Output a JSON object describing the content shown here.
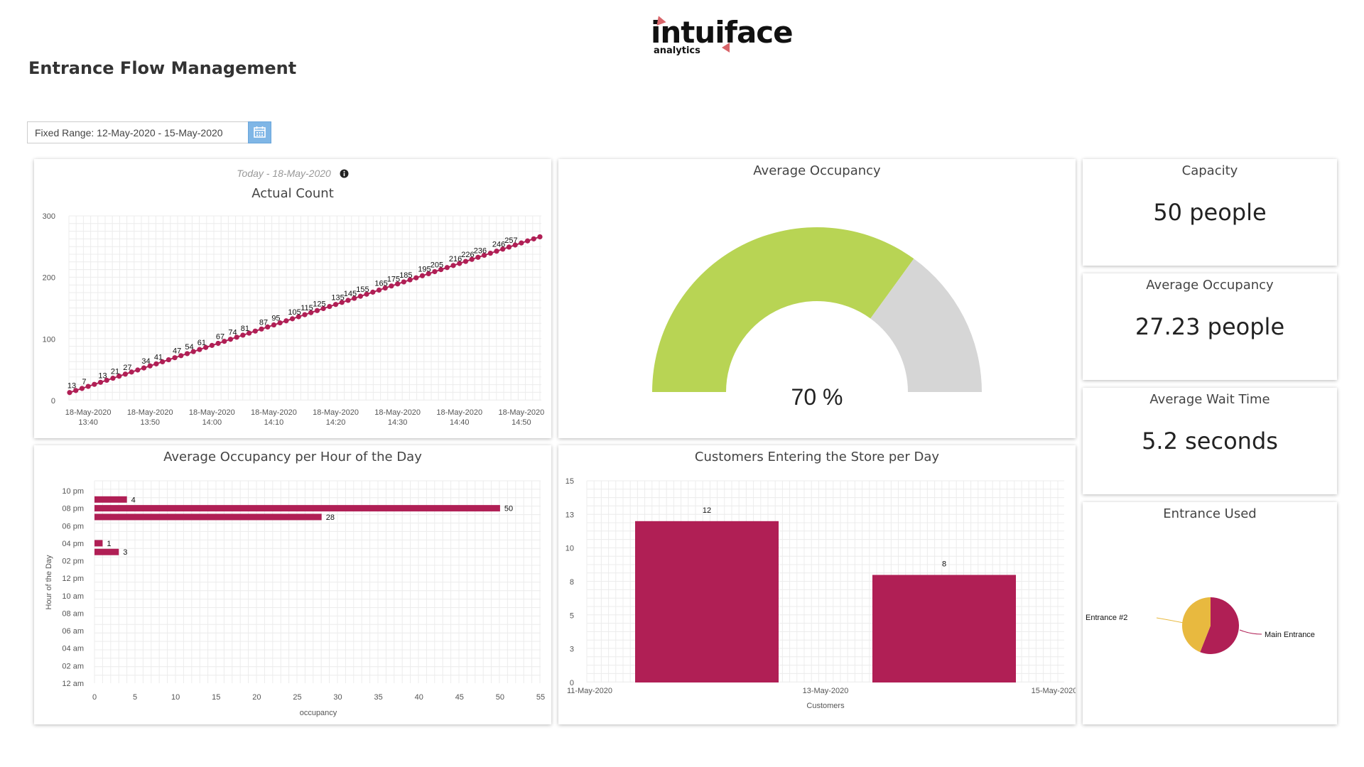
{
  "brand": {
    "logo_text": "intuiface",
    "logo_sub": "analytics",
    "accent": "#d8656a"
  },
  "page_title": "Entrance Flow Management",
  "date_range": {
    "label": "Fixed Range: 12-May-2020 - 15-May-2020",
    "button_icon": "calendar-icon",
    "accent": "#7fb6e6"
  },
  "colors": {
    "series": "#b01f55",
    "gauge_fill": "#b8d454",
    "gauge_bg": "#d6d6d6",
    "pie_main": "#b01f55",
    "pie_other": "#e8b93f"
  },
  "actual_count": {
    "subtitle": "Today - 18-May-2020",
    "title": "Actual Count",
    "info_icon": "info-icon",
    "chart_data": {
      "type": "line",
      "title": "Actual Count",
      "x_tick_labels": [
        [
          "18-May-2020",
          "13:40"
        ],
        [
          "18-May-2020",
          "13:50"
        ],
        [
          "18-May-2020",
          "14:00"
        ],
        [
          "18-May-2020",
          "14:10"
        ],
        [
          "18-May-2020",
          "14:20"
        ],
        [
          "18-May-2020",
          "14:30"
        ],
        [
          "18-May-2020",
          "14:40"
        ],
        [
          "18-May-2020",
          "14:50"
        ]
      ],
      "x_start": "13:37",
      "x_end": "14:53",
      "ylim": [
        0,
        300
      ],
      "yticks": [
        0,
        100,
        200,
        300
      ],
      "labeled_values": [
        13,
        7,
        13,
        21,
        27,
        34,
        41,
        47,
        54,
        61,
        67,
        74,
        81,
        87,
        95,
        105,
        115,
        125,
        135,
        145,
        155,
        165,
        175,
        185,
        195,
        205,
        216,
        226,
        236,
        246,
        257
      ],
      "point_count": 77,
      "end_value": 266,
      "grid": true
    }
  },
  "average_occupancy_gauge": {
    "title": "Average Occupancy",
    "chart_data": {
      "type": "gauge",
      "value": 70,
      "max": 100,
      "label": "70 %"
    }
  },
  "kpis": [
    {
      "title": "Capacity",
      "value": "50 people"
    },
    {
      "title": "Average Occupancy",
      "value": "27.23 people"
    },
    {
      "title": "Average Wait Time",
      "value": "5.2 seconds"
    }
  ],
  "hourly_occupancy": {
    "title": "Average Occupancy per Hour of the Day",
    "chart_data": {
      "type": "bar",
      "orientation": "horizontal",
      "title": "Average Occupancy per Hour of the Day",
      "xlabel": "occupancy",
      "ylabel": "Hour of the Day",
      "xlim": [
        0,
        55
      ],
      "xticks": [
        0,
        5,
        10,
        15,
        20,
        25,
        30,
        35,
        40,
        45,
        50,
        55
      ],
      "yticks": [
        "12 am",
        "02 am",
        "04 am",
        "06 am",
        "08 am",
        "10 am",
        "12 pm",
        "02 pm",
        "04 pm",
        "06 pm",
        "08 pm",
        "10 pm"
      ],
      "bars": [
        {
          "hour": 21,
          "value": 4
        },
        {
          "hour": 20,
          "value": 50
        },
        {
          "hour": 19,
          "value": 28
        },
        {
          "hour": 16,
          "value": 1
        },
        {
          "hour": 15,
          "value": 3
        }
      ]
    }
  },
  "customers_per_day": {
    "title": "Customers Entering the Store per Day",
    "chart_data": {
      "type": "bar",
      "title": "Customers Entering the Store per Day",
      "xlabel": "Customers",
      "x_tick_labels": [
        "11-May-2020",
        "13-May-2020",
        "15-May-2020"
      ],
      "ylim": [
        0,
        15
      ],
      "ytick_labels": [
        "0",
        "3",
        "5",
        "8",
        "10",
        "13",
        "15"
      ],
      "categories": [
        "12-May-2020",
        "14-May-2020"
      ],
      "values": [
        12,
        8
      ]
    }
  },
  "entrance_used": {
    "title": "Entrance Used",
    "chart_data": {
      "type": "pie",
      "title": "Entrance Used",
      "slices": [
        {
          "label": "Main Entrance",
          "fraction": 0.56
        },
        {
          "label": "Entrance #2",
          "fraction": 0.44
        }
      ]
    }
  }
}
